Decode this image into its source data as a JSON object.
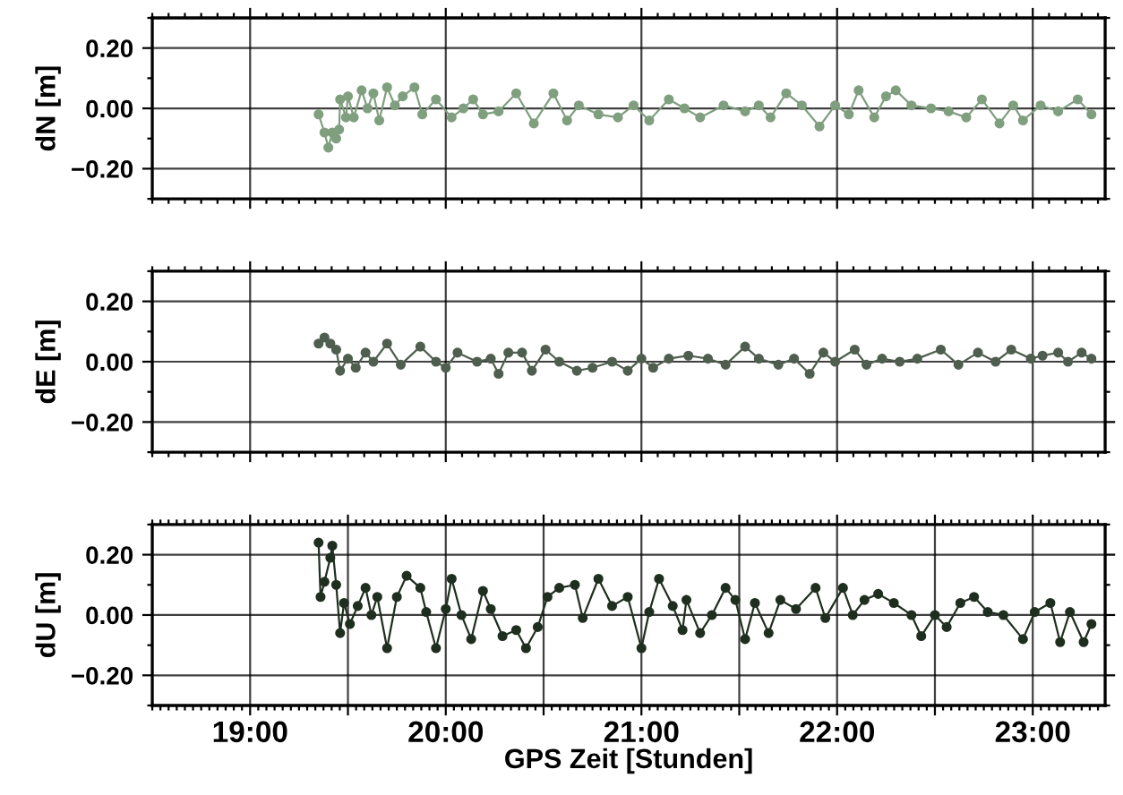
{
  "chart_data": [
    {
      "type": "line",
      "ylabel": "dN [m]",
      "color": "#7f9f7f",
      "marker": "circle",
      "grid": true,
      "tick_labels": "y",
      "xlim": [
        18.5,
        23.37
      ],
      "xticks": [
        19,
        20,
        21,
        22,
        23
      ],
      "ylim": [
        -0.3,
        0.3
      ],
      "yticks": [
        {
          "value": -0.2,
          "label": "−0.20"
        },
        {
          "value": 0,
          "label": "0.00"
        },
        {
          "value": 0.2,
          "label": "0.20"
        }
      ],
      "x": [
        19.35,
        19.38,
        19.4,
        19.42,
        19.44,
        19.455,
        19.46,
        19.49,
        19.5,
        19.53,
        19.57,
        19.6,
        19.63,
        19.66,
        19.7,
        19.74,
        19.78,
        19.84,
        19.88,
        19.95,
        20.03,
        20.09,
        20.14,
        20.19,
        20.27,
        20.36,
        20.45,
        20.55,
        20.62,
        20.68,
        20.78,
        20.88,
        20.96,
        21.04,
        21.14,
        21.22,
        21.3,
        21.42,
        21.53,
        21.6,
        21.66,
        21.74,
        21.82,
        21.91,
        21.99,
        22.06,
        22.11,
        22.19,
        22.25,
        22.3,
        22.38,
        22.48,
        22.57,
        22.66,
        22.74,
        22.83,
        22.9,
        22.95,
        23.04,
        23.13,
        23.23,
        23.3
      ],
      "values": [
        -0.02,
        -0.08,
        -0.13,
        -0.08,
        -0.1,
        -0.07,
        0.03,
        -0.03,
        0.04,
        -0.03,
        0.06,
        0.0,
        0.05,
        -0.04,
        0.07,
        0.01,
        0.04,
        0.07,
        -0.02,
        0.03,
        -0.03,
        0.0,
        0.03,
        -0.02,
        -0.01,
        0.05,
        -0.05,
        0.05,
        -0.04,
        0.01,
        -0.02,
        -0.03,
        0.01,
        -0.04,
        0.03,
        0.0,
        -0.03,
        0.01,
        -0.01,
        0.01,
        -0.03,
        0.05,
        0.01,
        -0.06,
        0.01,
        -0.02,
        0.06,
        -0.03,
        0.04,
        0.06,
        0.01,
        0.0,
        -0.01,
        -0.03,
        0.03,
        -0.05,
        0.01,
        -0.04,
        0.01,
        -0.01,
        0.03,
        -0.02
      ]
    },
    {
      "type": "line",
      "ylabel": "dE [m]",
      "color": "#4f5f4f",
      "marker": "circle",
      "grid": true,
      "tick_labels": "y",
      "xlim": [
        18.5,
        23.37
      ],
      "xticks": [
        19,
        20,
        21,
        22,
        23
      ],
      "ylim": [
        -0.3,
        0.3
      ],
      "yticks": [
        {
          "value": -0.2,
          "label": "−0.20"
        },
        {
          "value": 0,
          "label": "0.00"
        },
        {
          "value": 0.2,
          "label": "0.20"
        }
      ],
      "x": [
        19.35,
        19.38,
        19.41,
        19.44,
        19.46,
        19.5,
        19.54,
        19.59,
        19.63,
        19.7,
        19.77,
        19.87,
        19.95,
        20.0,
        20.06,
        20.16,
        20.23,
        20.27,
        20.32,
        20.39,
        20.44,
        20.51,
        20.58,
        20.67,
        20.75,
        20.85,
        20.93,
        21.0,
        21.06,
        21.14,
        21.24,
        21.34,
        21.43,
        21.53,
        21.6,
        21.7,
        21.78,
        21.86,
        21.93,
        21.99,
        22.09,
        22.15,
        22.23,
        22.32,
        22.41,
        22.53,
        22.62,
        22.72,
        22.81,
        22.89,
        22.99,
        23.05,
        23.13,
        23.18,
        23.25,
        23.3
      ],
      "values": [
        0.06,
        0.08,
        0.06,
        0.04,
        -0.03,
        0.01,
        -0.02,
        0.03,
        0.0,
        0.06,
        -0.01,
        0.05,
        0.0,
        -0.02,
        0.03,
        0.0,
        0.01,
        -0.04,
        0.03,
        0.03,
        -0.03,
        0.04,
        0.0,
        -0.03,
        -0.02,
        0.0,
        -0.03,
        0.01,
        -0.02,
        0.01,
        0.02,
        0.01,
        -0.01,
        0.05,
        0.01,
        -0.01,
        0.01,
        -0.04,
        0.03,
        0.0,
        0.04,
        -0.01,
        0.01,
        0.0,
        0.01,
        0.04,
        -0.01,
        0.03,
        0.0,
        0.04,
        0.01,
        0.02,
        0.03,
        0.0,
        0.03,
        0.01
      ]
    },
    {
      "type": "line",
      "ylabel": "dU [m]",
      "xlabel": "GPS Zeit [Stunden]",
      "color": "#1f2f1f",
      "marker": "circle",
      "grid": true,
      "xlim": [
        18.5,
        23.37
      ],
      "xticks": [
        {
          "value": 19,
          "label": "19:00"
        },
        {
          "value": 19.5,
          "label": null
        },
        {
          "value": 20,
          "label": "20:00"
        },
        {
          "value": 20.5,
          "label": null
        },
        {
          "value": 21,
          "label": "21:00"
        },
        {
          "value": 21.5,
          "label": null
        },
        {
          "value": 22,
          "label": "22:00"
        },
        {
          "value": 22.5,
          "label": null
        },
        {
          "value": 23,
          "label": "23:00"
        }
      ],
      "ylim": [
        -0.3,
        0.3
      ],
      "yticks": [
        {
          "value": -0.2,
          "label": "−0.20"
        },
        {
          "value": 0,
          "label": "0.00"
        },
        {
          "value": 0.2,
          "label": "0.20"
        }
      ],
      "x": [
        19.35,
        19.36,
        19.38,
        19.41,
        19.42,
        19.44,
        19.46,
        19.48,
        19.51,
        19.55,
        19.59,
        19.62,
        19.65,
        19.7,
        19.75,
        19.8,
        19.87,
        19.9,
        19.95,
        20.0,
        20.03,
        20.08,
        20.13,
        20.19,
        20.23,
        20.29,
        20.36,
        20.41,
        20.47,
        20.52,
        20.58,
        20.66,
        20.7,
        20.78,
        20.85,
        20.93,
        21.0,
        21.04,
        21.09,
        21.16,
        21.21,
        21.23,
        21.3,
        21.36,
        21.43,
        21.48,
        21.53,
        21.58,
        21.65,
        21.71,
        21.79,
        21.89,
        21.94,
        22.03,
        22.08,
        22.14,
        22.21,
        22.29,
        22.38,
        22.43,
        22.5,
        22.56,
        22.63,
        22.7,
        22.77,
        22.85,
        22.95,
        23.01,
        23.09,
        23.14,
        23.19,
        23.26,
        23.3
      ],
      "values": [
        0.24,
        0.06,
        0.11,
        0.19,
        0.23,
        0.1,
        -0.06,
        0.04,
        -0.03,
        0.03,
        0.09,
        0.0,
        0.06,
        -0.11,
        0.06,
        0.13,
        0.09,
        0.01,
        -0.11,
        0.02,
        0.12,
        0.0,
        -0.08,
        0.08,
        0.02,
        -0.07,
        -0.05,
        -0.11,
        -0.04,
        0.06,
        0.09,
        0.1,
        -0.01,
        0.12,
        0.03,
        0.06,
        -0.11,
        0.01,
        0.12,
        0.03,
        -0.05,
        0.05,
        -0.06,
        0.0,
        0.09,
        0.05,
        -0.08,
        0.04,
        -0.06,
        0.05,
        0.02,
        0.09,
        -0.01,
        0.09,
        0.0,
        0.05,
        0.07,
        0.04,
        0.0,
        -0.07,
        0.0,
        -0.04,
        0.04,
        0.06,
        0.01,
        0.0,
        -0.08,
        0.01,
        0.04,
        -0.09,
        0.01,
        -0.09,
        -0.03
      ]
    }
  ]
}
